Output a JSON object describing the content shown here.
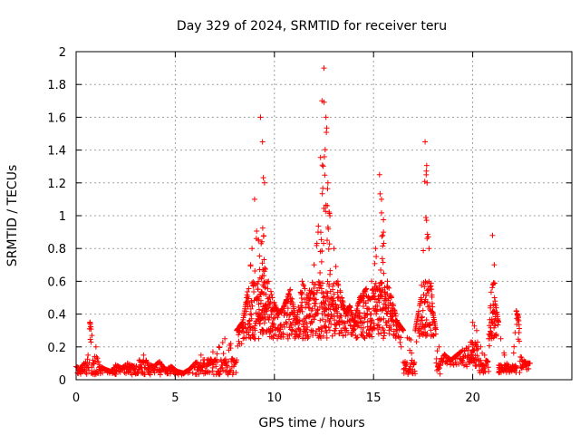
{
  "chart_data": {
    "type": "scatter",
    "title": "Day 329 of 2024, SRMTID for receiver teru",
    "xlabel": "GPS time / hours",
    "ylabel": "SRMTID / TECUs",
    "xlim": [
      0,
      25
    ],
    "ylim": [
      0,
      2
    ],
    "xticks": [
      0,
      5,
      10,
      15,
      20
    ],
    "xtick_labels": [
      "0",
      "5",
      "10",
      "15",
      "20"
    ],
    "yticks": [
      0,
      0.2,
      0.4,
      0.6,
      0.8,
      1,
      1.2,
      1.4,
      1.6,
      1.8,
      2
    ],
    "ytick_labels": [
      "0",
      "0.2",
      "0.4",
      "0.6",
      "0.8",
      "1",
      "1.2",
      "1.4",
      "1.6",
      "1.8",
      "2"
    ],
    "grid": true,
    "marker": "+",
    "color": "#ff0000",
    "series": [
      {
        "name": "SRMTID",
        "x": [
          0.0,
          0.2,
          0.4,
          0.6,
          0.7,
          0.8,
          1.0,
          1.2,
          1.5,
          1.8,
          2.0,
          2.3,
          2.6,
          2.9,
          3.2,
          3.4,
          3.6,
          3.9,
          4.2,
          4.5,
          4.8,
          5.1,
          5.4,
          5.7,
          6.0,
          6.3,
          6.6,
          6.9,
          7.2,
          7.5,
          7.8,
          8.1,
          8.4,
          8.6,
          8.8,
          9.0,
          9.2,
          9.3,
          9.4,
          9.5,
          9.7,
          9.9,
          10.2,
          10.5,
          10.8,
          11.1,
          11.4,
          11.7,
          12.0,
          12.2,
          12.4,
          12.5,
          12.6,
          12.7,
          12.8,
          13.0,
          13.2,
          13.4,
          13.6,
          13.8,
          14.0,
          14.3,
          14.6,
          14.9,
          15.1,
          15.3,
          15.4,
          15.5,
          15.7,
          15.9,
          16.2,
          16.5,
          16.8,
          17.1,
          17.4,
          17.6,
          17.7,
          17.8,
          18.0,
          18.3,
          18.6,
          18.9,
          19.2,
          19.5,
          19.8,
          20.0,
          20.2,
          20.4,
          20.6,
          20.8,
          20.9,
          21.0,
          21.1,
          21.3,
          21.6,
          21.9,
          22.2,
          22.3,
          22.5,
          22.8
        ],
        "y": [
          0.08,
          0.07,
          0.1,
          0.15,
          0.35,
          0.27,
          0.2,
          0.08,
          0.06,
          0.05,
          0.09,
          0.07,
          0.1,
          0.08,
          0.12,
          0.15,
          0.1,
          0.08,
          0.11,
          0.06,
          0.08,
          0.05,
          0.04,
          0.06,
          0.1,
          0.15,
          0.12,
          0.17,
          0.2,
          0.25,
          0.22,
          0.3,
          0.35,
          0.5,
          0.7,
          1.1,
          0.85,
          1.6,
          1.45,
          1.2,
          0.6,
          0.5,
          0.4,
          0.45,
          0.55,
          0.35,
          0.6,
          0.5,
          0.7,
          0.9,
          1.7,
          1.9,
          1.6,
          1.2,
          1.0,
          0.8,
          0.6,
          0.5,
          0.4,
          0.45,
          0.35,
          0.5,
          0.55,
          0.6,
          0.8,
          1.25,
          1.1,
          0.9,
          0.6,
          0.5,
          0.35,
          0.3,
          0.25,
          0.3,
          0.5,
          1.45,
          1.2,
          0.8,
          0.4,
          0.2,
          0.15,
          0.12,
          0.15,
          0.18,
          0.2,
          0.35,
          0.3,
          0.2,
          0.15,
          0.25,
          0.45,
          0.88,
          0.5,
          0.35,
          0.15,
          0.06,
          0.42,
          0.38,
          0.12,
          0.1
        ],
        "sample_points_note": "Representative samples read off the plot; dense cloud rendered around them"
      }
    ]
  }
}
